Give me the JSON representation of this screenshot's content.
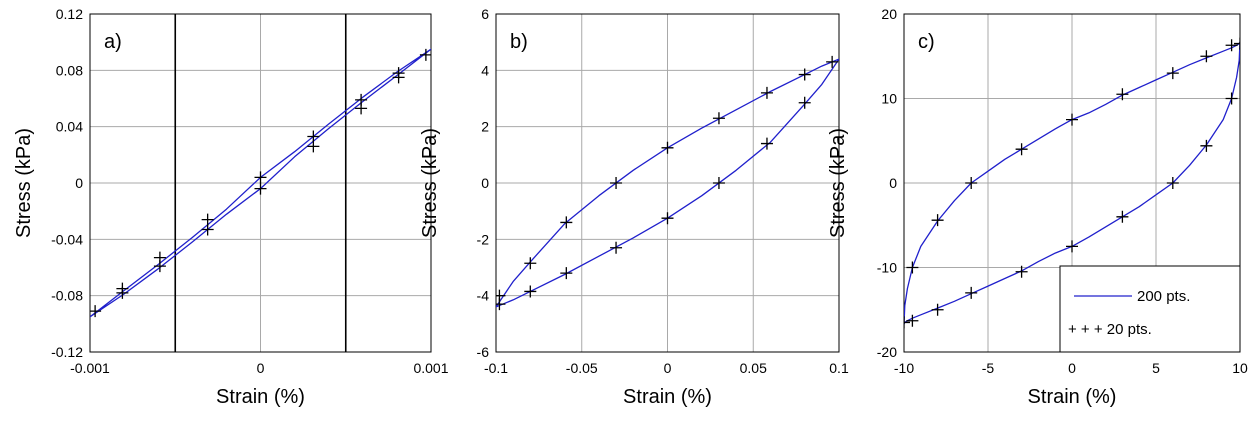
{
  "chart_data": [
    {
      "type": "line",
      "panel_label": "a)",
      "xlabel": "Strain (%)",
      "ylabel": "Stress (kPa)",
      "xlim": [
        -0.001,
        0.001
      ],
      "ylim": [
        -0.12,
        0.12
      ],
      "xticks": [
        -0.001,
        0,
        0.001
      ],
      "xtick_labels": [
        "-0.001",
        "0",
        "0.001"
      ],
      "yticks": [
        -0.12,
        -0.08,
        -0.04,
        0,
        0.04,
        0.08,
        0.12
      ],
      "ytick_labels": [
        "-0.12",
        "-0.08",
        "-0.04",
        "0",
        "0.04",
        "0.08",
        "0.12"
      ],
      "grid": true,
      "vertical_lines": [
        -0.0005,
        0.0005
      ],
      "line_color": "#2020cc",
      "series": [
        {
          "style": "line",
          "x": [
            -0.001,
            -0.0008,
            -0.0006,
            -0.0004,
            -0.0002,
            0,
            0.0002,
            0.0004,
            0.0006,
            0.0008,
            0.001,
            0.0008,
            0.0006,
            0.0004,
            0.0002,
            0,
            -0.0002,
            -0.0004,
            -0.0006,
            -0.0008,
            -0.001
          ],
          "y": [
            -0.095,
            -0.0788,
            -0.0609,
            -0.0419,
            -0.0222,
            -0.004,
            0.0186,
            0.0387,
            0.0579,
            0.0763,
            0.095,
            0.0788,
            0.0609,
            0.0419,
            0.0222,
            0.004,
            -0.0186,
            -0.0387,
            -0.0579,
            -0.0763,
            -0.095
          ]
        },
        {
          "style": "markers",
          "x": [
            -0.00097,
            -0.00081,
            -0.00059,
            -0.00031,
            0,
            0.00031,
            0.00059,
            0.00081,
            0.00097,
            0.00081,
            0.00059,
            0.00031,
            0,
            -0.00031,
            -0.00059,
            -0.00081
          ],
          "y": [
            -0.091,
            -0.078,
            -0.059,
            -0.033,
            -0.004,
            0.026,
            0.053,
            0.075,
            0.091,
            0.078,
            0.059,
            0.033,
            0.004,
            -0.026,
            -0.053,
            -0.075
          ]
        }
      ]
    },
    {
      "type": "line",
      "panel_label": "b)",
      "xlabel": "Strain (%)",
      "ylabel": "Stress (kPa)",
      "xlim": [
        -0.1,
        0.1
      ],
      "ylim": [
        -6,
        6
      ],
      "xticks": [
        -0.1,
        -0.05,
        0,
        0.05,
        0.1
      ],
      "xtick_labels": [
        "-0.1",
        "-0.05",
        "0",
        "0.05",
        "0.1"
      ],
      "yticks": [
        -6,
        -4,
        -2,
        0,
        2,
        4,
        6
      ],
      "ytick_labels": [
        "-6",
        "-4",
        "-2",
        "0",
        "2",
        "4",
        "6"
      ],
      "grid": true,
      "line_color": "#2020cc",
      "series": [
        {
          "style": "line",
          "x": [
            -0.1,
            -0.09,
            -0.08,
            -0.06,
            -0.04,
            -0.02,
            0,
            0.02,
            0.04,
            0.06,
            0.08,
            0.09,
            0.1,
            0.09,
            0.08,
            0.06,
            0.04,
            0.02,
            0,
            -0.02,
            -0.04,
            -0.06,
            -0.08,
            -0.09,
            -0.1
          ],
          "y": [
            -4.4,
            -3.5,
            -2.8,
            -1.45,
            -0.45,
            0.45,
            1.25,
            1.95,
            2.6,
            3.25,
            3.85,
            4.15,
            4.4,
            3.5,
            2.8,
            1.45,
            0.45,
            -0.45,
            -1.25,
            -1.95,
            -2.6,
            -3.25,
            -3.85,
            -4.15,
            -4.4
          ]
        },
        {
          "style": "markers",
          "x": [
            -0.098,
            -0.08,
            -0.059,
            -0.03,
            0,
            0.03,
            0.058,
            0.08,
            0.096,
            0.08,
            0.058,
            0.03,
            0,
            -0.03,
            -0.059,
            -0.08,
            -0.098
          ],
          "y": [
            -4.3,
            -2.85,
            -1.4,
            0,
            1.25,
            2.3,
            3.2,
            3.85,
            4.3,
            2.85,
            1.4,
            0,
            -1.25,
            -2.3,
            -3.2,
            -3.85,
            -4.0
          ]
        }
      ]
    },
    {
      "type": "line",
      "panel_label": "c)",
      "xlabel": "Strain (%)",
      "ylabel": "Stress (kPa)",
      "xlim": [
        -10,
        10
      ],
      "ylim": [
        -20,
        20
      ],
      "xticks": [
        -10,
        -5,
        0,
        5,
        10
      ],
      "xtick_labels": [
        "-10",
        "-5",
        "0",
        "5",
        "10"
      ],
      "yticks": [
        -20,
        -10,
        0,
        10,
        20
      ],
      "ytick_labels": [
        "-20",
        "-10",
        "0",
        "10",
        "20"
      ],
      "grid": true,
      "line_color": "#2020cc",
      "legend": {
        "position": "bottom-right",
        "entries": [
          {
            "label": "200 pts.",
            "style": "line"
          },
          {
            "label": "+ + +  20 pts.",
            "style": "markers"
          }
        ]
      },
      "series": [
        {
          "style": "line",
          "x": [
            -10,
            -9.95,
            -9.8,
            -9.5,
            -9,
            -8,
            -7,
            -6,
            -5,
            -4,
            -3,
            -2,
            -1,
            0,
            1,
            2,
            3,
            4,
            5,
            6,
            7,
            8,
            9,
            9.5,
            9.8,
            9.95,
            10,
            9.95,
            9.8,
            9.5,
            9,
            8,
            7,
            6,
            5,
            4,
            3,
            2,
            1,
            0,
            -1,
            -2,
            -3,
            -4,
            -5,
            -6,
            -7,
            -8,
            -9,
            -9.5,
            -9.8,
            -9.95,
            -10
          ],
          "y": [
            -16.7,
            -14.5,
            -12.5,
            -10,
            -7.5,
            -4.5,
            -2.1,
            0,
            1.4,
            2.8,
            4,
            5.2,
            6.4,
            7.5,
            8.3,
            9.3,
            10.4,
            11.3,
            12.2,
            13.1,
            14,
            14.8,
            15.6,
            16,
            16.3,
            16.5,
            16.7,
            14.5,
            12.5,
            10,
            7.5,
            4.5,
            2.1,
            0,
            -1.4,
            -2.8,
            -4,
            -5.2,
            -6.4,
            -7.5,
            -8.3,
            -9.3,
            -10.4,
            -11.3,
            -12.2,
            -13.1,
            -14,
            -14.8,
            -15.6,
            -16,
            -16.3,
            -16.5,
            -16.7
          ]
        },
        {
          "style": "markers",
          "x": [
            -10,
            -9.5,
            -8,
            -6,
            -3,
            0,
            3,
            6,
            8,
            9.5,
            10,
            9.5,
            8,
            6,
            3,
            0,
            -3,
            -6,
            -8,
            -9.5
          ],
          "y": [
            -16.5,
            -10,
            -4.4,
            0,
            4,
            7.5,
            10.5,
            13,
            15,
            16.3,
            16.5,
            10,
            4.4,
            0,
            -4,
            -7.5,
            -10.5,
            -13,
            -15,
            -16.3
          ]
        }
      ]
    }
  ]
}
